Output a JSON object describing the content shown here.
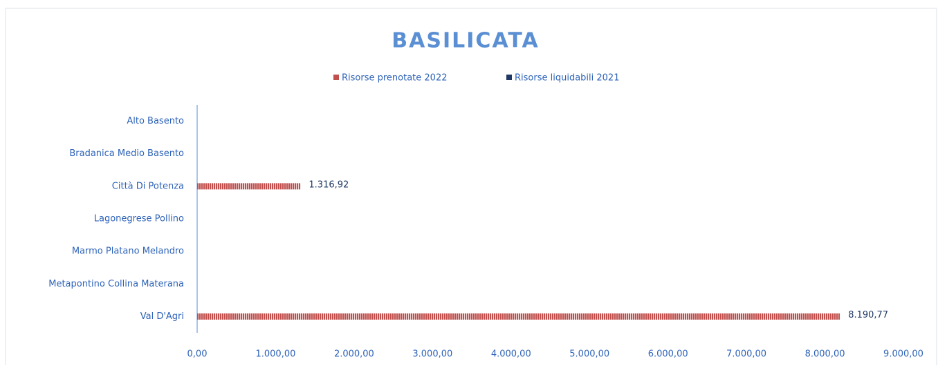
{
  "chart_data": {
    "type": "bar",
    "orientation": "horizontal",
    "title": "BASILICATA",
    "categories": [
      "Alto Basento",
      "Bradanica Medio Basento",
      "Città Di Potenza",
      "Lagonegrese Pollino",
      "Marmo Platano Melandro",
      "Metapontino Collina Materana",
      "Val D'Agri"
    ],
    "series": [
      {
        "name": "Risorse prenotate 2022",
        "color": "#c0504d",
        "values": [
          null,
          null,
          1316.92,
          null,
          null,
          null,
          8190.77
        ],
        "value_labels": [
          null,
          null,
          "1.316,92",
          null,
          null,
          null,
          "8.190,77"
        ]
      },
      {
        "name": "Risorse liquidabili 2021",
        "color": "#1f3864",
        "values": [
          null,
          null,
          null,
          null,
          null,
          null,
          null
        ]
      }
    ],
    "xlim": [
      0,
      9000
    ],
    "xticks": [
      {
        "value": 0,
        "label": "0,00"
      },
      {
        "value": 1000,
        "label": "1.000,00"
      },
      {
        "value": 2000,
        "label": "2.000,00"
      },
      {
        "value": 3000,
        "label": "3.000,00"
      },
      {
        "value": 4000,
        "label": "4.000,00"
      },
      {
        "value": 5000,
        "label": "5.000,00"
      },
      {
        "value": 6000,
        "label": "6.000,00"
      },
      {
        "value": 7000,
        "label": "7.000,00"
      },
      {
        "value": 8000,
        "label": "8.000,00"
      },
      {
        "value": 9000,
        "label": "9.000,00"
      }
    ],
    "legend": "top"
  }
}
